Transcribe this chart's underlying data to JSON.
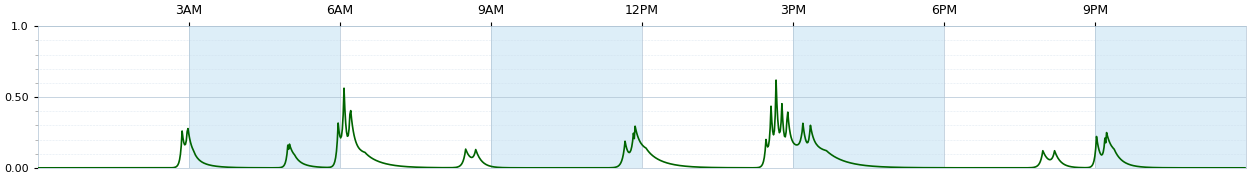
{
  "title": "",
  "xlabel": "",
  "ylabel": "",
  "xlim": [
    0,
    1440
  ],
  "ylim": [
    0,
    1.0
  ],
  "yticks": [
    0.0,
    0.5,
    1.0
  ],
  "ytick_labels": [
    "0.00",
    "0.50",
    "1.0"
  ],
  "xticks": [
    180,
    360,
    540,
    720,
    900,
    1080,
    1260
  ],
  "xticklabels": [
    "3AM",
    "6AM",
    "9AM",
    "12PM",
    "3PM",
    "6PM",
    "9PM"
  ],
  "line_color": "#006400",
  "line_width": 1.2,
  "bg_color_even": "#ddeef8",
  "bg_color_odd": "#ffffff",
  "grid_color": "#b0c4d4",
  "minor_dot_color": "#c8d8e8"
}
